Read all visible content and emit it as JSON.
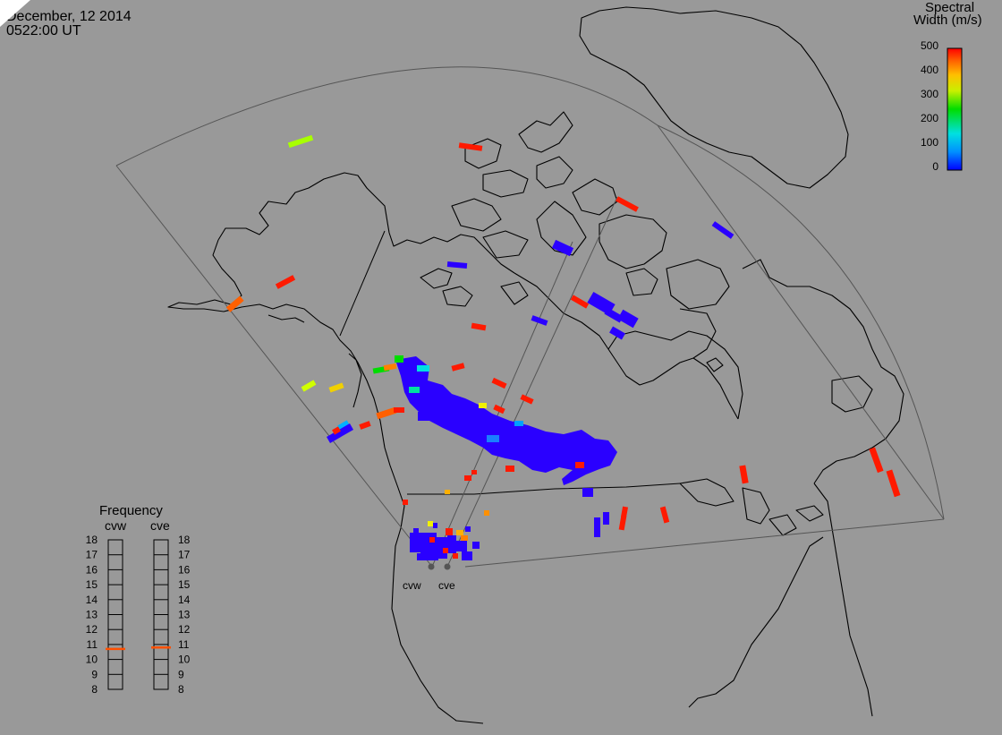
{
  "header": {
    "date": "December, 12 2014",
    "time": "0522:00 UT"
  },
  "colorbar": {
    "title_line1": "Spectral",
    "title_line2": "Width (m/s)",
    "ticks": [
      "500",
      "400",
      "300",
      "200",
      "100",
      "0"
    ]
  },
  "frequency": {
    "title": "Frequency",
    "radars": [
      "cvw",
      "cve"
    ],
    "values_mhz": [
      "18",
      "17",
      "16",
      "15",
      "14",
      "13",
      "12",
      "11",
      "10",
      "9",
      "8"
    ],
    "selected": {
      "cvw": 10.7,
      "cve": 10.8
    }
  },
  "radar_sites": [
    "cvw",
    "cve"
  ],
  "colors": {
    "background": "#999999",
    "blue": "#2a00ff",
    "cyan": "#00e0e0",
    "green": "#00dd00",
    "yellow": "#f0f000",
    "orange": "#ff8000",
    "red": "#ff0000"
  }
}
